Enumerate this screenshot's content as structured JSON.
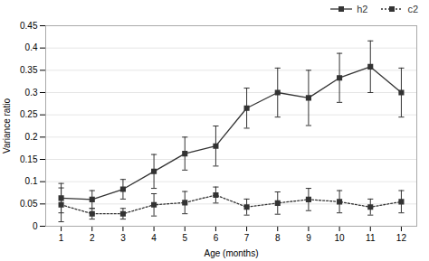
{
  "chart_data": {
    "type": "line",
    "xlabel": "Age (months)",
    "ylabel": "Variance ratio",
    "x": [
      1,
      2,
      3,
      4,
      5,
      6,
      7,
      8,
      9,
      10,
      11,
      12
    ],
    "series": [
      {
        "name": "h2",
        "color": "#333333",
        "line_style": "solid",
        "marker": "square",
        "values": [
          0.063,
          0.06,
          0.083,
          0.123,
          0.163,
          0.18,
          0.265,
          0.3,
          0.288,
          0.333,
          0.358,
          0.3
        ],
        "err_lower": [
          0.033,
          0.02,
          0.022,
          0.038,
          0.037,
          0.045,
          0.045,
          0.055,
          0.062,
          0.055,
          0.058,
          0.055
        ],
        "err_upper": [
          0.033,
          0.02,
          0.022,
          0.038,
          0.037,
          0.045,
          0.045,
          0.055,
          0.062,
          0.055,
          0.058,
          0.055
        ]
      },
      {
        "name": "c2",
        "color": "#333333",
        "line_style": "dotted",
        "marker": "square",
        "values": [
          0.048,
          0.028,
          0.028,
          0.048,
          0.053,
          0.07,
          0.043,
          0.052,
          0.06,
          0.055,
          0.043,
          0.055
        ],
        "err_lower": [
          0.038,
          0.012,
          0.012,
          0.025,
          0.025,
          0.018,
          0.018,
          0.025,
          0.025,
          0.025,
          0.018,
          0.025
        ],
        "err_upper": [
          0.038,
          0.012,
          0.012,
          0.025,
          0.025,
          0.018,
          0.018,
          0.025,
          0.025,
          0.025,
          0.018,
          0.025
        ]
      }
    ],
    "xlim": [
      0.5,
      12.5
    ],
    "xticks": [
      1,
      2,
      3,
      4,
      5,
      6,
      7,
      8,
      9,
      10,
      11,
      12
    ],
    "ylim": [
      0,
      0.45
    ],
    "yticks": [
      0,
      0.05,
      0.1,
      0.15,
      0.2,
      0.25,
      0.3,
      0.35,
      0.4,
      0.45
    ],
    "grid": "y",
    "legend": "right"
  }
}
